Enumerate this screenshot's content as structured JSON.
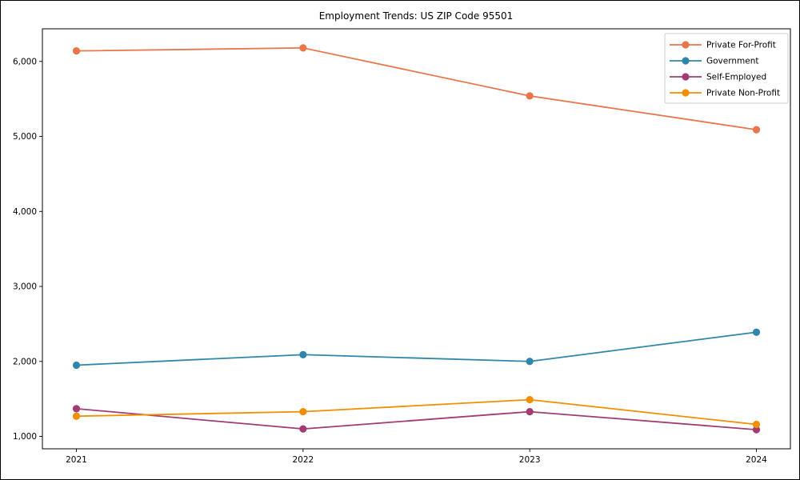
{
  "window": {
    "background": "#ffffff",
    "border_color": "#000000"
  },
  "chart_data": {
    "type": "line",
    "title": "Employment Trends: US ZIP Code 95501",
    "x": [
      2021,
      2022,
      2023,
      2024
    ],
    "x_tick_labels": [
      "2021",
      "2022",
      "2023",
      "2024"
    ],
    "series": [
      {
        "name": "Private For-Profit",
        "color": "#E8764B",
        "values": [
          6140,
          6180,
          5540,
          5090
        ]
      },
      {
        "name": "Government",
        "color": "#2E86AB",
        "values": [
          1950,
          2090,
          2000,
          2390
        ]
      },
      {
        "name": "Self-Employed",
        "color": "#A23B72",
        "values": [
          1370,
          1100,
          1330,
          1090
        ]
      },
      {
        "name": "Private Non-Profit",
        "color": "#F18F01",
        "values": [
          1270,
          1330,
          1490,
          1160
        ]
      }
    ],
    "xlabel": "",
    "ylabel": "",
    "axes": {
      "xlim": [
        2020.85,
        2024.15
      ],
      "ylim": [
        835,
        6435
      ],
      "y_ticks": [
        1000,
        2000,
        3000,
        4000,
        5000,
        6000
      ],
      "y_tick_labels": [
        "1,000",
        "2,000",
        "3,000",
        "4,000",
        "5,000",
        "6,000"
      ],
      "grid": false,
      "spine_color": "#000000"
    },
    "legend": {
      "position": "upper right",
      "frame": true,
      "frame_color": "#cccccc",
      "background": "#ffffff",
      "entries": [
        "Private For-Profit",
        "Government",
        "Self-Employed",
        "Private Non-Profit"
      ]
    }
  }
}
